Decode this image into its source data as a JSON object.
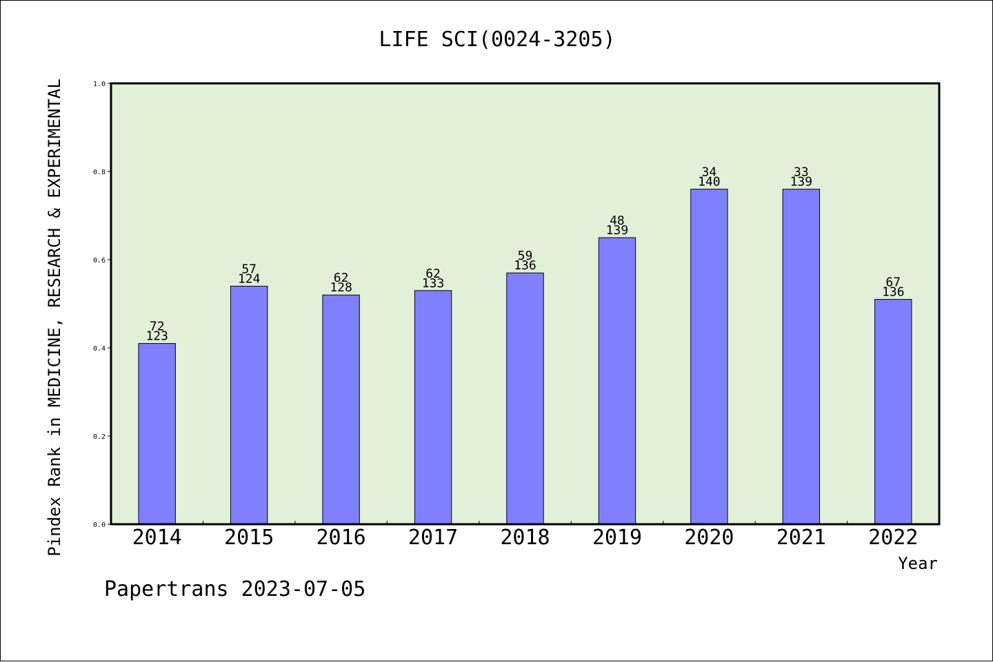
{
  "chart_data": {
    "type": "bar",
    "title": "LIFE SCI(0024-3205)",
    "xlabel": "Year",
    "ylabel": "Pindex Rank in MEDICINE, RESEARCH & EXPERIMENTAL",
    "categories": [
      "2014",
      "2015",
      "2016",
      "2017",
      "2018",
      "2019",
      "2020",
      "2021",
      "2022"
    ],
    "values": [
      0.41,
      0.54,
      0.52,
      0.53,
      0.57,
      0.65,
      0.76,
      0.76,
      0.51
    ],
    "rank_labels": [
      "72",
      "57",
      "62",
      "62",
      "59",
      "48",
      "34",
      "33",
      "67"
    ],
    "total_labels": [
      "123",
      "124",
      "128",
      "133",
      "136",
      "139",
      "140",
      "139",
      "136"
    ],
    "ylim": [
      0,
      1.0
    ],
    "yticks": [
      "0.0",
      "0.2",
      "0.4",
      "0.6",
      "0.8",
      "1.0"
    ],
    "grid": false,
    "colors": {
      "bar": "#8080ff",
      "plot_background": "#e2f0d9",
      "axis": "#000000"
    }
  },
  "footer": {
    "text": "Papertrans 2023-07-05"
  }
}
